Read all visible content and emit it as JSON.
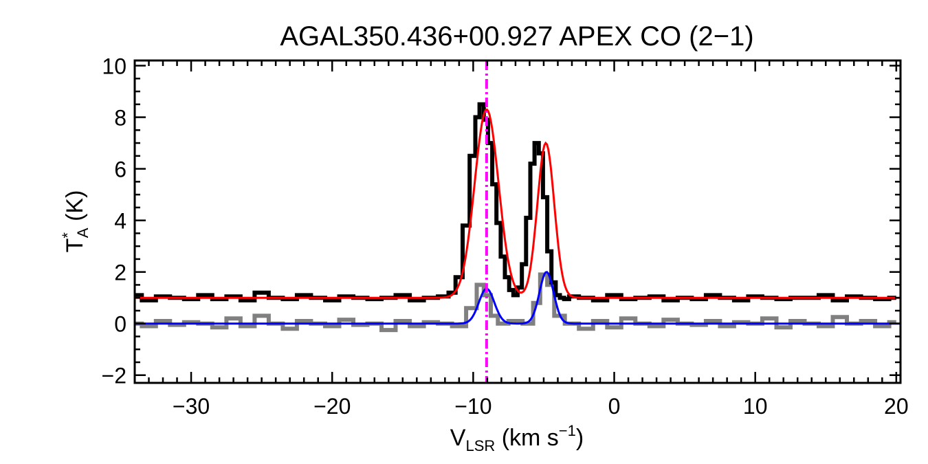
{
  "chart_data": {
    "type": "line",
    "title": "AGAL350.436+00.927  APEX CO (2−1)",
    "xlabel": {
      "main": "V",
      "sub": "LSR",
      "unit_prefix": " (km s",
      "unit_sup": "−1",
      "unit_suffix": ")"
    },
    "ylabel": {
      "main": "T",
      "sup": "*",
      "sub": "A",
      "unit": " (K)"
    },
    "xlim": [
      -34,
      20.3
    ],
    "ylim": [
      -2.3,
      10.2
    ],
    "x_ticks": [
      -30,
      -20,
      -10,
      0,
      10,
      20
    ],
    "x_tick_labels": [
      "−30",
      "−20",
      "−10",
      "0",
      "10",
      "20"
    ],
    "y_ticks": [
      -2,
      0,
      2,
      4,
      6,
      8,
      10
    ],
    "y_tick_labels": [
      "−2",
      "0",
      "2",
      "4",
      "6",
      "8",
      "10"
    ],
    "vline": {
      "x": -9.05,
      "color": "#ff00ff",
      "style": "dash-dot"
    },
    "series": [
      {
        "role": "spectrum-primary",
        "color": "#000000",
        "step": true,
        "x": [
          -34,
          -33,
          -32,
          -31,
          -30,
          -29,
          -28,
          -27,
          -26,
          -25,
          -24,
          -23,
          -22,
          -21,
          -20,
          -19,
          -18,
          -17,
          -16,
          -15,
          -14,
          -13,
          -12,
          -11.5,
          -11,
          -10.5,
          -10,
          -9.7,
          -9.4,
          -9.1,
          -8.8,
          -8.5,
          -8.2,
          -7.9,
          -7.6,
          -7.3,
          -7,
          -6.7,
          -6.4,
          -6.1,
          -5.8,
          -5.5,
          -5.2,
          -4.9,
          -4.6,
          -4.3,
          -4,
          -3.7,
          -3.4,
          -3,
          -2,
          -1,
          0,
          1,
          2,
          3,
          4,
          5,
          6,
          7,
          8,
          9,
          10,
          11,
          12,
          13,
          14,
          15,
          16,
          17,
          18,
          19,
          20
        ],
        "y": [
          1.1,
          0.9,
          1.05,
          1.0,
          0.95,
          1.1,
          0.95,
          1.05,
          0.9,
          1.2,
          1.0,
          0.95,
          1.1,
          1.0,
          0.9,
          1.05,
          1.0,
          0.95,
          1.0,
          1.1,
          0.9,
          1.0,
          1.05,
          1.2,
          1.8,
          3.8,
          6.5,
          8.0,
          8.5,
          7.9,
          7.0,
          5.4,
          3.9,
          2.6,
          1.8,
          1.3,
          1.1,
          1.4,
          2.3,
          4.1,
          6.2,
          7.0,
          6.6,
          4.9,
          2.8,
          1.6,
          1.1,
          1.0,
          0.95,
          1.05,
          1.0,
          0.9,
          1.1,
          0.95,
          1.0,
          1.05,
          0.9,
          1.0,
          0.95,
          1.1,
          1.0,
          0.9,
          1.05,
          1.0,
          0.95,
          1.0,
          1.0,
          1.1,
          0.9,
          1.05,
          1.0,
          0.95,
          1.0
        ]
      },
      {
        "role": "fit-primary",
        "color": "#ff0000",
        "gaussians": [
          {
            "amp": 7.3,
            "center": -9.05,
            "sigma": 0.85
          },
          {
            "amp": 6.0,
            "center": -4.85,
            "sigma": 0.6
          }
        ],
        "baseline": 1.0
      },
      {
        "role": "spectrum-secondary",
        "color": "#808080",
        "step": true,
        "x": [
          -34,
          -33,
          -32,
          -31,
          -30,
          -29,
          -28,
          -27,
          -26,
          -25,
          -24,
          -23,
          -22,
          -21,
          -20,
          -19,
          -18,
          -17,
          -16,
          -15,
          -14,
          -13,
          -12,
          -11,
          -10,
          -9.5,
          -9,
          -8.5,
          -8,
          -7,
          -6,
          -5.5,
          -5,
          -4.5,
          -4,
          -3,
          -2,
          -1,
          0,
          1,
          2,
          3,
          4,
          5,
          6,
          7,
          8,
          9,
          10,
          11,
          12,
          13,
          14,
          15,
          16,
          17,
          18,
          19,
          20
        ],
        "y": [
          0.0,
          -0.1,
          0.1,
          -0.05,
          0.05,
          0.0,
          -0.15,
          0.2,
          -0.1,
          0.3,
          0.0,
          -0.2,
          0.1,
          0.0,
          -0.1,
          0.15,
          -0.05,
          0.0,
          -0.25,
          0.1,
          -0.1,
          0.05,
          0.0,
          -0.1,
          0.6,
          1.5,
          1.1,
          0.3,
          0.0,
          0.1,
          0.0,
          0.8,
          1.9,
          1.5,
          0.3,
          0.0,
          -0.2,
          0.1,
          -0.15,
          0.2,
          0.0,
          -0.1,
          0.15,
          0.0,
          -0.05,
          0.1,
          -0.1,
          0.05,
          0.0,
          0.2,
          -0.15,
          0.1,
          0.0,
          -0.1,
          0.25,
          0.0,
          0.1,
          -0.1,
          0.05
        ]
      },
      {
        "role": "fit-secondary",
        "color": "#0000ff",
        "gaussians": [
          {
            "amp": 1.35,
            "center": -9.05,
            "sigma": 0.55
          },
          {
            "amp": 2.0,
            "center": -4.8,
            "sigma": 0.5
          }
        ],
        "baseline": 0.0
      }
    ]
  }
}
